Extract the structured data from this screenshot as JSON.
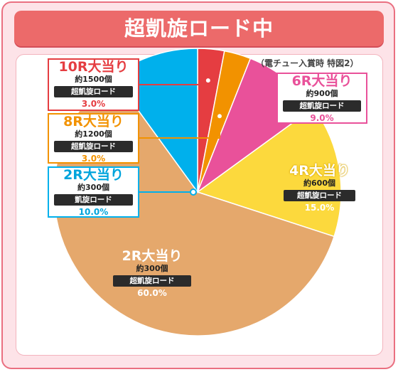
{
  "header": {
    "title": "超凱旋ロード中"
  },
  "note": "（電チュー入賞時 特図2）",
  "chart_data": {
    "type": "pie",
    "title": "超凱旋ロード中",
    "subtitle": "（電チュー入賞時 特図2）",
    "slices": [
      {
        "label": "10R大当り",
        "balls": "約1500個",
        "mode": "超凱旋ロード",
        "value": 3.0,
        "display": "3.0%",
        "color": "#e53d41"
      },
      {
        "label": "8R大当り",
        "balls": "約1200個",
        "mode": "超凱旋ロード",
        "value": 3.0,
        "display": "3.0%",
        "color": "#f29200"
      },
      {
        "label": "6R大当り",
        "balls": "約900個",
        "mode": "超凱旋ロード",
        "value": 9.0,
        "display": "9.0%",
        "color": "#e9519a"
      },
      {
        "label": "4R大当り",
        "balls": "約600個",
        "mode": "超凱旋ロード",
        "value": 15.0,
        "display": "15.0%",
        "color": "#fcd93d"
      },
      {
        "label": "2R大当り",
        "balls": "約300個",
        "mode": "超凱旋ロード",
        "value": 60.0,
        "display": "60.0%",
        "color": "#e5a86c"
      },
      {
        "label": "2R大当り",
        "balls": "約300個",
        "mode": "凱旋ロード",
        "value": 10.0,
        "display": "10.0%",
        "color": "#00b0ec"
      }
    ]
  }
}
